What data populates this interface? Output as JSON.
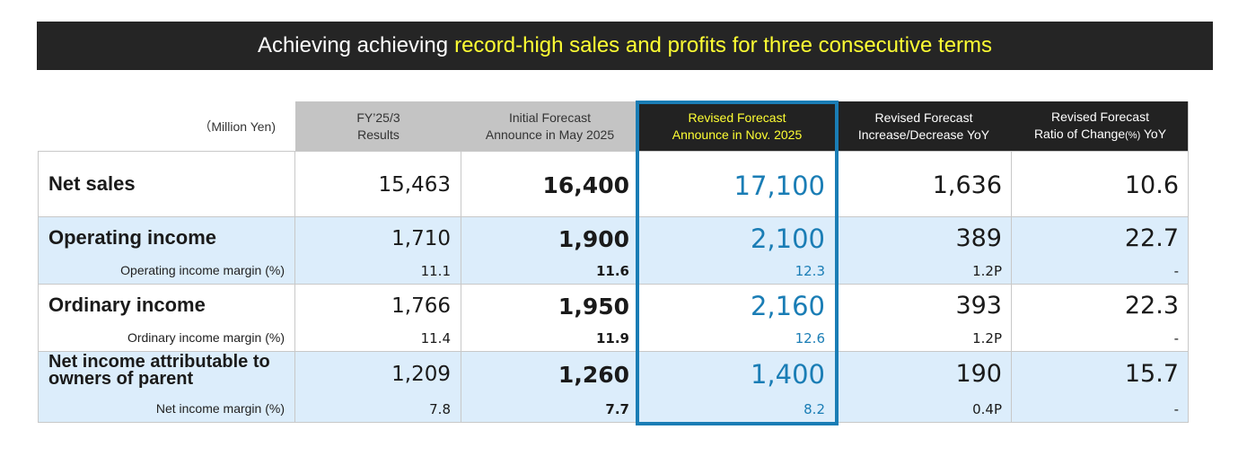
{
  "banner": {
    "lead": "Achieving achieving",
    "highlight": "record-high sales and profits for three consecutive terms"
  },
  "table": {
    "unit_label": "（Million Yen)",
    "columns": [
      {
        "line1": "FY’25/3",
        "line2": "Results"
      },
      {
        "line1": "Initial Forecast",
        "line2": "Announce in May 2025"
      },
      {
        "line1": "Revised Forecast",
        "line2": "Announce in Nov. 2025"
      },
      {
        "line1": "Revised Forecast",
        "line2": "Increase/Decrease YoY"
      },
      {
        "line1": "Revised Forecast",
        "line2a": "Ratio of Change",
        "line2b": "(%)",
        "line2c": " YoY"
      }
    ],
    "rows": [
      {
        "label": "Net sales",
        "values": [
          "15,463",
          "16,400",
          "17,100",
          "1,636",
          "10.6"
        ]
      },
      {
        "label": "Operating income",
        "values": [
          "1,710",
          "1,900",
          "2,100",
          "389",
          "22.7"
        ],
        "sub_label": "Operating income margin (%)",
        "sub_values": [
          "11.1",
          "11.6",
          "12.3",
          "1.2P",
          "-"
        ]
      },
      {
        "label": "Ordinary income",
        "values": [
          "1,766",
          "1,950",
          "2,160",
          "393",
          "22.3"
        ],
        "sub_label": "Ordinary income margin (%)",
        "sub_values": [
          "11.4",
          "11.9",
          "12.6",
          "1.2P",
          "-"
        ]
      },
      {
        "label_line1": "Net income attributable to",
        "label_line2": "owners of parent",
        "values": [
          "1,209",
          "1,260",
          "1,400",
          "190",
          "15.7"
        ],
        "sub_label": "Net income margin (%)",
        "sub_values": [
          "7.8",
          "7.7",
          "8.2",
          "0.4P",
          "-"
        ]
      }
    ]
  },
  "colors": {
    "banner_bg": "#252525",
    "banner_highlight": "#ffff33",
    "accent": "#1a7db5",
    "row_highlight": "#dcedfb",
    "header_grey": "#c4c4c4",
    "header_dark": "#222222"
  }
}
